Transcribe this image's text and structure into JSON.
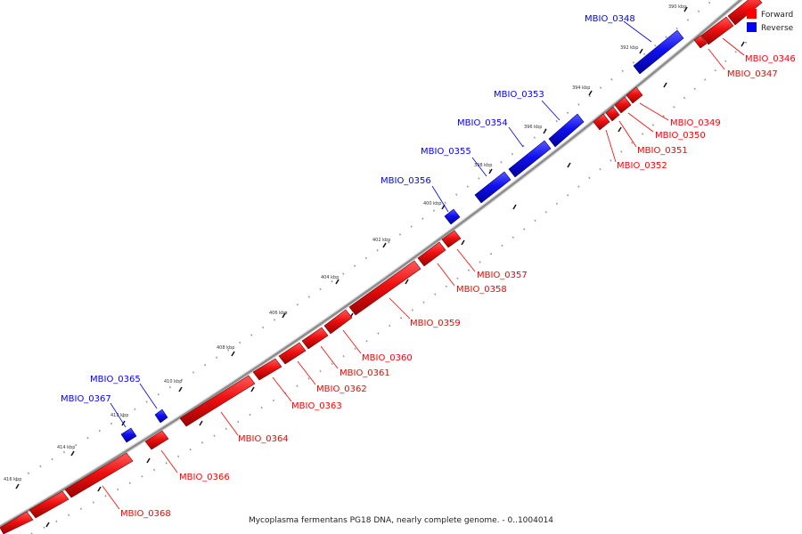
{
  "caption": "Mycoplasma fermentans PG18 DNA, nearly complete genome. - 0..1004014",
  "legend": {
    "forward_label": "Forward",
    "reverse_label": "Reverse",
    "forward_color": "#ff0000",
    "reverse_color": "#0000ff"
  },
  "tick_labels": [
    "390 kbp",
    "392 kbp",
    "394 kbp",
    "396 kbp",
    "398 kbp",
    "400 kbp",
    "402 kbp",
    "404 kbp",
    "406 kbp",
    "408 kbp",
    "410 kbp",
    "412 kbp",
    "414 kbp",
    "416 kbp"
  ],
  "genes": [
    {
      "id": "MBIO_0346",
      "strand": "forward"
    },
    {
      "id": "MBIO_0347",
      "strand": "forward"
    },
    {
      "id": "MBIO_0348",
      "strand": "reverse"
    },
    {
      "id": "MBIO_0349",
      "strand": "forward"
    },
    {
      "id": "MBIO_0350",
      "strand": "forward"
    },
    {
      "id": "MBIO_0351",
      "strand": "forward"
    },
    {
      "id": "MBIO_0352",
      "strand": "forward"
    },
    {
      "id": "MBIO_0353",
      "strand": "reverse"
    },
    {
      "id": "MBIO_0354",
      "strand": "reverse"
    },
    {
      "id": "MBIO_0355",
      "strand": "reverse"
    },
    {
      "id": "MBIO_0356",
      "strand": "reverse"
    },
    {
      "id": "MBIO_0357",
      "strand": "forward"
    },
    {
      "id": "MBIO_0358",
      "strand": "forward"
    },
    {
      "id": "MBIO_0359",
      "strand": "forward"
    },
    {
      "id": "MBIO_0360",
      "strand": "forward"
    },
    {
      "id": "MBIO_0361",
      "strand": "forward"
    },
    {
      "id": "MBIO_0362",
      "strand": "forward"
    },
    {
      "id": "MBIO_0363",
      "strand": "forward"
    },
    {
      "id": "MBIO_0364",
      "strand": "forward"
    },
    {
      "id": "MBIO_0365",
      "strand": "reverse"
    },
    {
      "id": "MBIO_0366",
      "strand": "forward"
    },
    {
      "id": "MBIO_0367",
      "strand": "reverse"
    },
    {
      "id": "MBIO_0368",
      "strand": "forward"
    }
  ]
}
